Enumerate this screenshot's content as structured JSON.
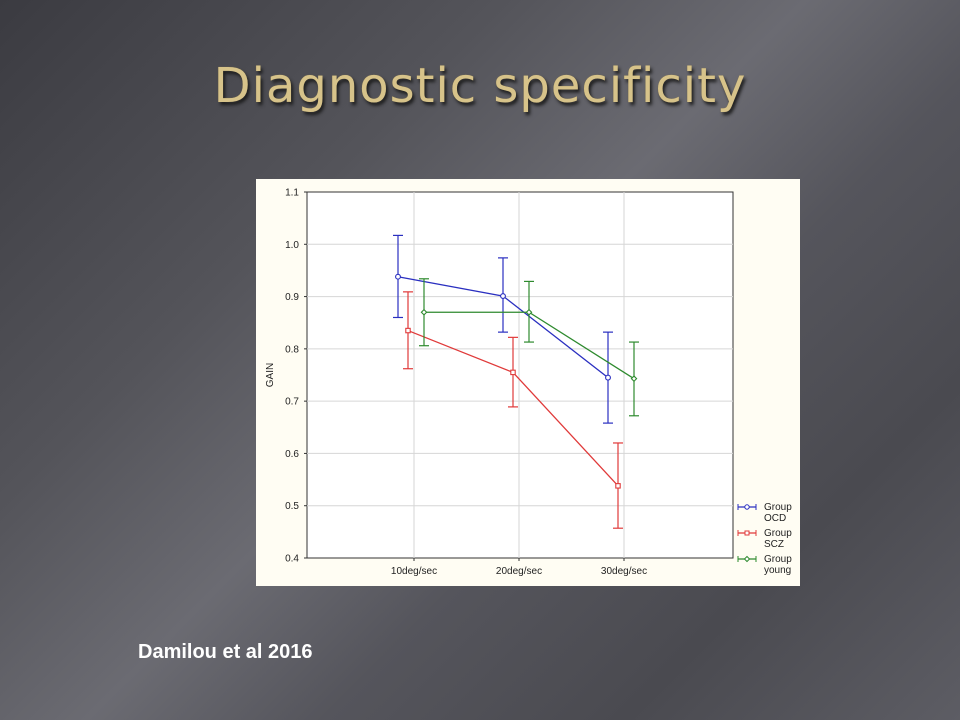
{
  "slide": {
    "title": "Diagnostic specificity",
    "citation": "Damilou et al 2016"
  },
  "chart_data": {
    "type": "line",
    "title": "",
    "xlabel": "",
    "ylabel": "GAIN",
    "categories": [
      "10deg/sec",
      "20deg/sec",
      "30deg/sec"
    ],
    "ylim": [
      0.4,
      1.1
    ],
    "yticks": [
      "0.4",
      "0.5",
      "0.6",
      "0.7",
      "0.8",
      "0.9",
      "1.0",
      "1.1"
    ],
    "grid": true,
    "legend_position": "bottom-right",
    "error_bars": true,
    "series": [
      {
        "name": "Group OCD",
        "legend_lines": [
          "Group",
          "OCD"
        ],
        "color": "#2a2fc0",
        "marker": "circle",
        "values": [
          0.938,
          0.901,
          0.745
        ],
        "lower": [
          0.86,
          0.832,
          0.658
        ],
        "upper": [
          1.017,
          0.974,
          0.832
        ]
      },
      {
        "name": "Group SCZ",
        "legend_lines": [
          "Group",
          "SCZ"
        ],
        "color": "#e03a3a",
        "marker": "square",
        "values": [
          0.835,
          0.755,
          0.538
        ],
        "lower": [
          0.762,
          0.689,
          0.457
        ],
        "upper": [
          0.909,
          0.822,
          0.62
        ]
      },
      {
        "name": "Group young",
        "legend_lines": [
          "Group",
          "young"
        ],
        "color": "#2e8a2e",
        "marker": "diamond",
        "values": [
          0.87,
          0.87,
          0.743
        ],
        "lower": [
          0.806,
          0.813,
          0.672
        ],
        "upper": [
          0.934,
          0.929,
          0.813
        ]
      }
    ]
  }
}
